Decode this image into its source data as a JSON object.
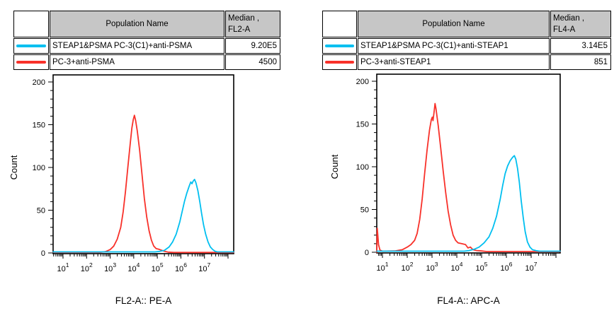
{
  "panels": [
    {
      "table": {
        "header": {
          "population": "Population Name",
          "median_line1": "Median ,",
          "median_line2": "FL2-A"
        },
        "rows": [
          {
            "color": "#00BFF0",
            "name": "STEAP1&PSMA PC-3(C1)+anti-PSMA",
            "median": "9.20E5"
          },
          {
            "color": "#F8312A",
            "name": "PC-3+anti-PSMA",
            "median": "4500"
          }
        ]
      }
    },
    {
      "table": {
        "header": {
          "population": "Population Name",
          "median_line1": "Median ,",
          "median_line2": "FL4-A"
        },
        "rows": [
          {
            "color": "#00BFF0",
            "name": "STEAP1&PSMA PC-3(C1)+anti-STEAP1",
            "median": "3.14E5"
          },
          {
            "color": "#F8312A",
            "name": "PC-3+anti-STEAP1",
            "median": "851"
          }
        ]
      }
    }
  ],
  "chart_data": [
    {
      "type": "line",
      "subtype": "flow-cytometry-histogram",
      "xlabel": "FL2-A:: PE-A",
      "ylabel": "Count",
      "x_scale": "log10",
      "xlim_log10": [
        0.58,
        8.24
      ],
      "x_labeled_decades": [
        1,
        2,
        3,
        4,
        5,
        6,
        7
      ],
      "ylim": [
        0,
        208
      ],
      "y_major_ticks": [
        0,
        50,
        100,
        150,
        200
      ],
      "y_minor_tick_step": 10,
      "grid": false,
      "legend_position": "table-above",
      "series": [
        {
          "name": "PC-3+anti-PSMA",
          "color": "#F8312A",
          "median": "4500",
          "points_log10x_count": [
            [
              0.58,
              0.8
            ],
            [
              2.6,
              0.8
            ],
            [
              2.8,
              1.5
            ],
            [
              3.0,
              4
            ],
            [
              3.15,
              8
            ],
            [
              3.3,
              16
            ],
            [
              3.45,
              30
            ],
            [
              3.55,
              48
            ],
            [
              3.65,
              72
            ],
            [
              3.75,
              100
            ],
            [
              3.85,
              128
            ],
            [
              3.92,
              146
            ],
            [
              3.98,
              156
            ],
            [
              4.03,
              161
            ],
            [
              4.08,
              155
            ],
            [
              4.15,
              143
            ],
            [
              4.25,
              120
            ],
            [
              4.35,
              92
            ],
            [
              4.45,
              64
            ],
            [
              4.55,
              42
            ],
            [
              4.65,
              26
            ],
            [
              4.75,
              15
            ],
            [
              4.85,
              8
            ],
            [
              4.95,
              5
            ],
            [
              5.05,
              4.5
            ],
            [
              5.15,
              3.5
            ],
            [
              5.3,
              2
            ],
            [
              5.45,
              1
            ],
            [
              5.7,
              0.6
            ],
            [
              8.24,
              0.6
            ]
          ]
        },
        {
          "name": "STEAP1&PSMA PC-3(C1)+anti-PSMA",
          "color": "#00BFF0",
          "median": "9.20E5",
          "points_log10x_count": [
            [
              0.58,
              1.2
            ],
            [
              4.9,
              1.2
            ],
            [
              5.1,
              1.8
            ],
            [
              5.3,
              3
            ],
            [
              5.5,
              7
            ],
            [
              5.65,
              13
            ],
            [
              5.8,
              22
            ],
            [
              5.95,
              36
            ],
            [
              6.05,
              48
            ],
            [
              6.15,
              60
            ],
            [
              6.25,
              70
            ],
            [
              6.35,
              78
            ],
            [
              6.42,
              83
            ],
            [
              6.47,
              81
            ],
            [
              6.52,
              84
            ],
            [
              6.58,
              86
            ],
            [
              6.64,
              82
            ],
            [
              6.72,
              73
            ],
            [
              6.8,
              60
            ],
            [
              6.88,
              46
            ],
            [
              6.96,
              33
            ],
            [
              7.05,
              22
            ],
            [
              7.15,
              13
            ],
            [
              7.25,
              7
            ],
            [
              7.35,
              4
            ],
            [
              7.45,
              2
            ],
            [
              7.55,
              1.2
            ],
            [
              8.24,
              1.2
            ]
          ]
        }
      ]
    },
    {
      "type": "line",
      "subtype": "flow-cytometry-histogram",
      "xlabel": "FL4-A:: APC-A",
      "ylabel": "Count",
      "x_scale": "log10",
      "xlim_log10": [
        0.77,
        8.17
      ],
      "x_labeled_decades": [
        1,
        2,
        3,
        4,
        5,
        6,
        7
      ],
      "ylim": [
        0,
        208
      ],
      "y_major_ticks": [
        0,
        50,
        100,
        150,
        200
      ],
      "y_minor_tick_step": 10,
      "grid": false,
      "legend_position": "table-above",
      "series": [
        {
          "name": "PC-3+anti-STEAP1",
          "color": "#F8312A",
          "median": "851",
          "points_log10x_count": [
            [
              0.77,
              0
            ],
            [
              0.79,
              28
            ],
            [
              0.84,
              9
            ],
            [
              0.9,
              2.5
            ],
            [
              1.0,
              1.2
            ],
            [
              1.5,
              1.5
            ],
            [
              1.8,
              3
            ],
            [
              2.0,
              6
            ],
            [
              2.15,
              9
            ],
            [
              2.3,
              14
            ],
            [
              2.4,
              22
            ],
            [
              2.5,
              38
            ],
            [
              2.6,
              62
            ],
            [
              2.7,
              92
            ],
            [
              2.8,
              120
            ],
            [
              2.9,
              143
            ],
            [
              2.97,
              155
            ],
            [
              3.01,
              158
            ],
            [
              3.04,
              154
            ],
            [
              3.08,
              163
            ],
            [
              3.12,
              174
            ],
            [
              3.16,
              168
            ],
            [
              3.25,
              148
            ],
            [
              3.35,
              122
            ],
            [
              3.45,
              95
            ],
            [
              3.55,
              70
            ],
            [
              3.65,
              48
            ],
            [
              3.75,
              32
            ],
            [
              3.85,
              20
            ],
            [
              3.95,
              14
            ],
            [
              4.05,
              11
            ],
            [
              4.2,
              10
            ],
            [
              4.35,
              9
            ],
            [
              4.45,
              5
            ],
            [
              4.55,
              6
            ],
            [
              4.65,
              3
            ],
            [
              4.8,
              2
            ],
            [
              5.0,
              1.5
            ],
            [
              5.2,
              0.8
            ],
            [
              8.17,
              0.8
            ]
          ]
        },
        {
          "name": "STEAP1&PSMA PC-3(C1)+anti-STEAP1",
          "color": "#00BFF0",
          "median": "3.14E5",
          "points_log10x_count": [
            [
              0.77,
              1.2
            ],
            [
              4.3,
              1.2
            ],
            [
              4.5,
              2
            ],
            [
              4.7,
              3.5
            ],
            [
              4.9,
              6
            ],
            [
              5.1,
              11
            ],
            [
              5.3,
              18
            ],
            [
              5.45,
              28
            ],
            [
              5.6,
              42
            ],
            [
              5.75,
              62
            ],
            [
              5.85,
              78
            ],
            [
              5.95,
              92
            ],
            [
              6.05,
              101
            ],
            [
              6.15,
              107
            ],
            [
              6.25,
              111
            ],
            [
              6.32,
              113
            ],
            [
              6.38,
              109
            ],
            [
              6.45,
              98
            ],
            [
              6.52,
              82
            ],
            [
              6.6,
              60
            ],
            [
              6.68,
              40
            ],
            [
              6.76,
              24
            ],
            [
              6.85,
              12
            ],
            [
              6.95,
              6
            ],
            [
              7.05,
              3
            ],
            [
              7.2,
              1.8
            ],
            [
              7.35,
              1.2
            ],
            [
              8.17,
              1.2
            ]
          ]
        }
      ]
    }
  ]
}
